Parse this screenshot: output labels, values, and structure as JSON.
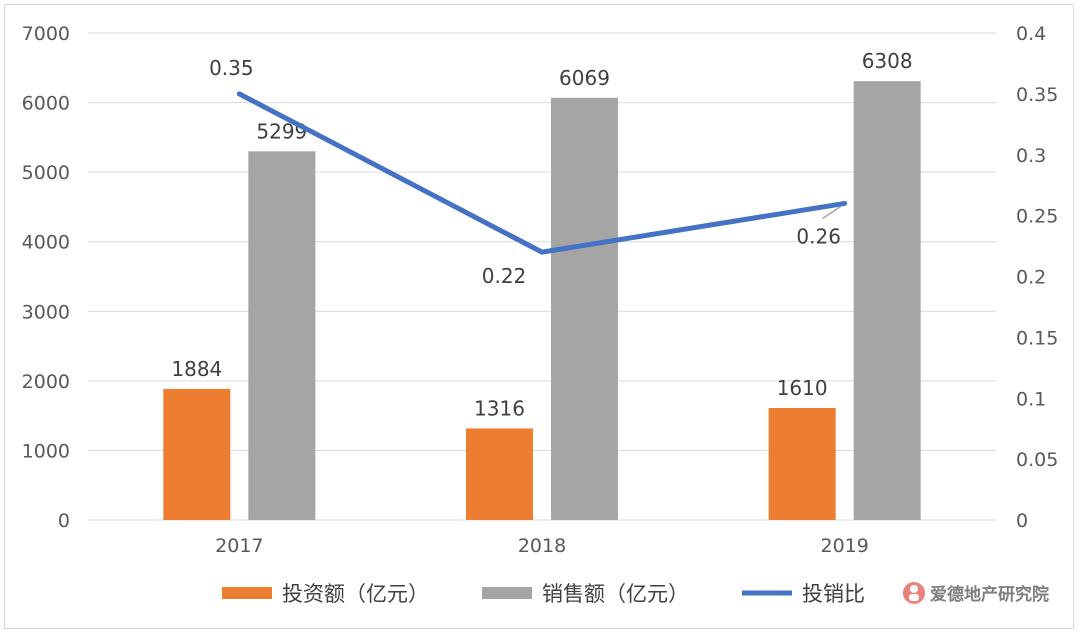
{
  "chart_data": {
    "type": "bar",
    "categories": [
      "2017",
      "2018",
      "2019"
    ],
    "series": [
      {
        "name": "投资额（亿元）",
        "kind": "bar",
        "axis": "left",
        "color": "#ED7D31",
        "values": [
          1884,
          1316,
          1610
        ]
      },
      {
        "name": "销售额（亿元）",
        "kind": "bar",
        "axis": "left",
        "color": "#A5A5A5",
        "values": [
          5299,
          6069,
          6308
        ]
      },
      {
        "name": "投销比",
        "kind": "line",
        "axis": "right",
        "color": "#4472C4",
        "values": [
          0.35,
          0.22,
          0.26
        ]
      }
    ],
    "left_axis": {
      "min": 0,
      "max": 7000,
      "ticks": [
        "0",
        "1000",
        "2000",
        "3000",
        "4000",
        "5000",
        "6000",
        "7000"
      ]
    },
    "right_axis": {
      "min": 0,
      "max": 0.4,
      "ticks": [
        "0",
        "0.05",
        "0.1",
        "0.15",
        "0.2",
        "0.25",
        "0.3",
        "0.35",
        "0.4"
      ]
    },
    "bar_labels": [
      [
        "1884",
        "1316",
        "1610"
      ],
      [
        "5299",
        "6069",
        "6308"
      ]
    ],
    "line_labels": [
      "0.35",
      "0.22",
      "0.26"
    ],
    "grid": true,
    "legend_position": "bottom"
  },
  "watermark": {
    "text": "爱德地产研究院"
  }
}
